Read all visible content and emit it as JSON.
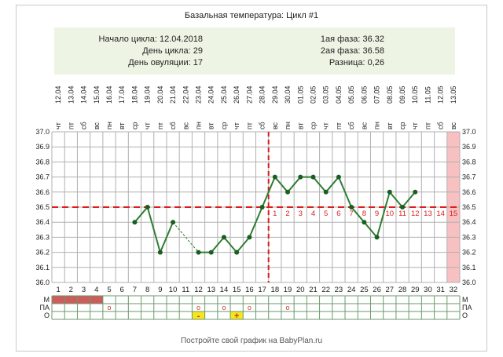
{
  "header": {
    "title": "Базальная температура: Цикл #1",
    "cycle_start": "Начало цикла: 12.04.2018",
    "cycle_day": "День цикла: 29",
    "ovulation_day": "День овуляции: 17",
    "phase1": "1ая фаза: 36.32",
    "phase2": "2ая фаза: 36.58",
    "difference": "Разница: 0,26"
  },
  "footer": {
    "text": "Постройте свой график на BabyPlan.ru"
  },
  "colors": {
    "line": "#2e7d32",
    "marker": "#1b5e20",
    "dashed": "#dd1c1c",
    "header_bg": "#eef4e4",
    "ruled_day": "#f8c1c1",
    "m_fill": "#cd5c5c",
    "mark": "#cc3333",
    "sign_bg": "#f5e71c",
    "grid": "#b0b0b0"
  },
  "chart_data": {
    "type": "line",
    "title": "Базальная температура: Цикл #1",
    "dates": [
      "12.04",
      "13.04",
      "14.04",
      "15.04",
      "16.04",
      "17.04",
      "18.04",
      "19.04",
      "20.04",
      "21.04",
      "22.04",
      "23.04",
      "24.04",
      "25.04",
      "26.04",
      "27.04",
      "28.04",
      "29.04",
      "30.04",
      "01.05",
      "02.05",
      "03.05",
      "04.05",
      "05.05",
      "06.05",
      "07.05",
      "08.05",
      "09.05",
      "10.05",
      "11.05",
      "12.05",
      "13.05"
    ],
    "weekdays": [
      "чт",
      "пт",
      "сб",
      "вс",
      "пн",
      "вт",
      "ср",
      "чт",
      "пт",
      "сб",
      "вс",
      "пн",
      "вт",
      "ср",
      "чт",
      "пт",
      "сб",
      "вс",
      "пн",
      "вт",
      "ср",
      "чт",
      "пт",
      "сб",
      "вс",
      "пн",
      "вт",
      "ср",
      "чт",
      "пт",
      "сб",
      "вс"
    ],
    "days": [
      1,
      2,
      3,
      4,
      5,
      6,
      7,
      8,
      9,
      10,
      11,
      12,
      13,
      14,
      15,
      16,
      17,
      18,
      19,
      20,
      21,
      22,
      23,
      24,
      25,
      26,
      27,
      28,
      29,
      30,
      31,
      32
    ],
    "ylim": [
      36.0,
      37.0
    ],
    "yticks": [
      "37.0",
      "36.9",
      "36.8",
      "36.7",
      "36.6",
      "36.5",
      "36.4",
      "36.3",
      "36.2",
      "36.1",
      "36.0"
    ],
    "series": [
      {
        "values": [
          null,
          null,
          null,
          null,
          null,
          null,
          36.4,
          36.5,
          36.2,
          36.4,
          null,
          36.2,
          36.2,
          36.3,
          36.2,
          36.3,
          36.5,
          36.7,
          36.6,
          36.7,
          36.7,
          36.6,
          36.7,
          36.5,
          36.4,
          36.3,
          36.6,
          36.5,
          36.6,
          null,
          null,
          null
        ]
      }
    ],
    "gap_segment": [
      10,
      11
    ],
    "coverline": 36.5,
    "ovulation_day": 17,
    "phase2_numbers": [
      "1",
      "2",
      "3",
      "4",
      "5",
      "6",
      "7",
      "8",
      "9",
      "10",
      "11",
      "12",
      "13",
      "14",
      "15"
    ],
    "phase2_number_start_day": 18,
    "ruled_out_day": 32,
    "bottom_rows": {
      "labels": [
        "М",
        "ПА",
        "О"
      ],
      "menstruation_days": [
        1,
        2,
        3,
        4
      ],
      "intercourse_days": [
        5,
        12,
        14,
        16,
        19
      ],
      "intercourse_mark": "o",
      "sign_cells": [
        {
          "day": 12,
          "text": "-"
        },
        {
          "day": 15,
          "text": "+"
        }
      ]
    }
  }
}
